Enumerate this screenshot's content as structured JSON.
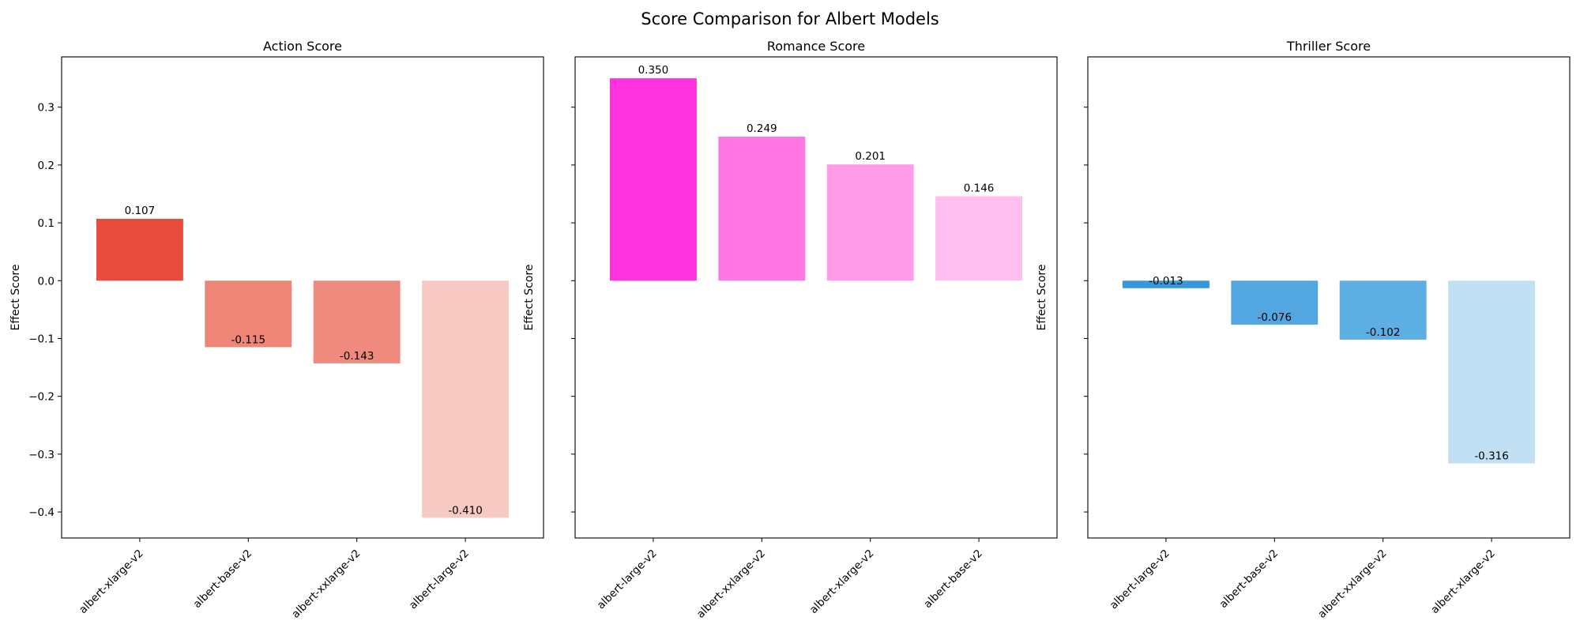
{
  "figure": {
    "title": "Score Comparison for Albert Models"
  },
  "chart_data": [
    {
      "type": "bar",
      "title": "Action Score",
      "xlabel": "",
      "ylabel": "Effect Score",
      "ylim": [
        -0.445,
        0.387
      ],
      "yticks": [
        -0.4,
        -0.3,
        -0.2,
        -0.1,
        0.0,
        0.1,
        0.2,
        0.3
      ],
      "ytick_labels": [
        "−0.4",
        "−0.3",
        "−0.2",
        "−0.1",
        "0.0",
        "0.1",
        "0.2",
        "0.3"
      ],
      "show_ytick_labels": true,
      "categories": [
        "albert-xlarge-v2",
        "albert-base-v2",
        "albert-xxlarge-v2",
        "albert-large-v2"
      ],
      "values": [
        0.107,
        -0.115,
        -0.143,
        -0.41
      ],
      "value_labels": [
        "0.107",
        "-0.115",
        "-0.143",
        "-0.410"
      ],
      "colors": [
        "#e74c3c",
        "#ee8576",
        "#ef8a7f",
        "#f6c9c3"
      ]
    },
    {
      "type": "bar",
      "title": "Romance Score",
      "xlabel": "",
      "ylabel": "Effect Score",
      "ylim": [
        -0.445,
        0.387
      ],
      "yticks": [
        -0.4,
        -0.3,
        -0.2,
        -0.1,
        0.0,
        0.1,
        0.2,
        0.3
      ],
      "ytick_labels": [
        "",
        "",
        "",
        "",
        "",
        "",
        "",
        ""
      ],
      "show_ytick_labels": false,
      "categories": [
        "albert-large-v2",
        "albert-xxlarge-v2",
        "albert-xlarge-v2",
        "albert-base-v2"
      ],
      "values": [
        0.35,
        0.249,
        0.201,
        0.146
      ],
      "value_labels": [
        "0.350",
        "0.249",
        "0.201",
        "0.146"
      ],
      "colors": [
        "#ff33dd",
        "#ff77e5",
        "#ff9be9",
        "#ffbff1"
      ]
    },
    {
      "type": "bar",
      "title": "Thriller Score",
      "xlabel": "",
      "ylabel": "Effect Score",
      "ylim": [
        -0.445,
        0.387
      ],
      "yticks": [
        -0.4,
        -0.3,
        -0.2,
        -0.1,
        0.0,
        0.1,
        0.2,
        0.3
      ],
      "ytick_labels": [
        "",
        "",
        "",
        "",
        "",
        "",
        "",
        ""
      ],
      "show_ytick_labels": false,
      "categories": [
        "albert-large-v2",
        "albert-base-v2",
        "albert-xxlarge-v2",
        "albert-xlarge-v2"
      ],
      "values": [
        -0.013,
        -0.076,
        -0.102,
        -0.316
      ],
      "value_labels": [
        "-0.013",
        "-0.076",
        "-0.102",
        "-0.316"
      ],
      "colors": [
        "#3498db",
        "#52a7e0",
        "#5daee3",
        "#c2e0f4"
      ]
    }
  ]
}
